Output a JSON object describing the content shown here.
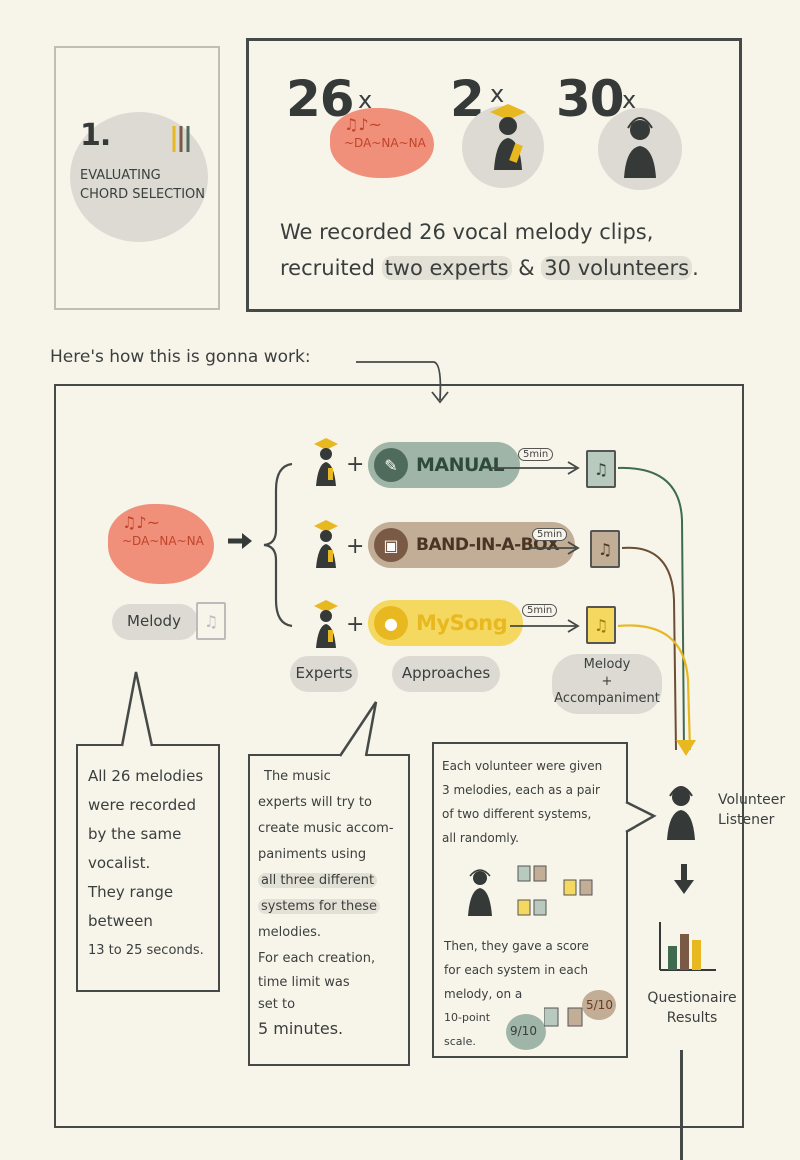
{
  "colors": {
    "paper": "#f7f4ea",
    "ink": "#3a3f3d",
    "gray_blob": "#dcdad3",
    "melody_red": "#f0907a",
    "manual_green": "#9fb5a8",
    "manual_icon": "#4f6b5c",
    "band_brown": "#c2ad96",
    "band_icon": "#7a5a44",
    "mysong_yellow": "#f5d860",
    "mysong_icon": "#e8b820",
    "arrow_green": "#3f6b4f",
    "arrow_brown": "#6b4e35",
    "arrow_yellow": "#e8b820"
  },
  "intro": {
    "number": "1.",
    "title_line1": "EVALUATING",
    "title_line2": "CHORD SELECTION"
  },
  "stats": {
    "clips_count": "26",
    "experts_count": "2",
    "volunteers_count": "30",
    "times_mark": "x",
    "melody_doodle_line1": "♫♪~",
    "melody_doodle_line2": "~DA~NA~NA",
    "summary_line1": "We recorded 26 vocal melody clips,",
    "summary_line2_a": "recruited ",
    "summary_line2_b": "two experts",
    "summary_line2_c": " & ",
    "summary_line2_d": "30 volunteers",
    "summary_line2_e": "."
  },
  "how": {
    "heading": "Here's how this is gonna work:"
  },
  "flow": {
    "melody_label": "Melody",
    "experts_label": "Experts",
    "approaches_label": "Approaches",
    "output_label_line1": "Melody",
    "output_label_line2": "+",
    "output_label_line3": "Accompaniment",
    "plus": "+",
    "timer": "5min",
    "approaches": [
      {
        "name": "MANUAL",
        "icon": "wrench-icon",
        "glyph": "🔧"
      },
      {
        "name": "BAND-IN-A-BOX",
        "icon": "box-icon",
        "glyph": "▣"
      },
      {
        "name": "MySong",
        "icon": "microphone-icon",
        "glyph": "🎤"
      }
    ],
    "volunteer_label_line1": "Volunteer",
    "volunteer_label_line2": "Listener",
    "results_label_line1": "Questionaire",
    "results_label_line2": "Results"
  },
  "notes": {
    "melodies": [
      "All 26 melodies",
      "were recorded",
      "by the same",
      "vocalist.",
      "They range",
      "between",
      "13 to 25 seconds."
    ],
    "experts": [
      "The music",
      "experts will try to",
      "create music accom-",
      "paniments using",
      "all three different",
      "systems for these",
      "melodies.",
      "For each creation,",
      "time limit was",
      "set to",
      "5 minutes."
    ],
    "volunteers_top": [
      "Each volunteer were given",
      "3 melodies, each as a pair",
      "of two different systems,",
      "all randomly."
    ],
    "volunteers_bottom": [
      "Then, they gave a score",
      "for each system in each",
      "melody, on a",
      "10-point",
      "scale."
    ],
    "score_a": "9/10",
    "score_b": "5/10"
  }
}
